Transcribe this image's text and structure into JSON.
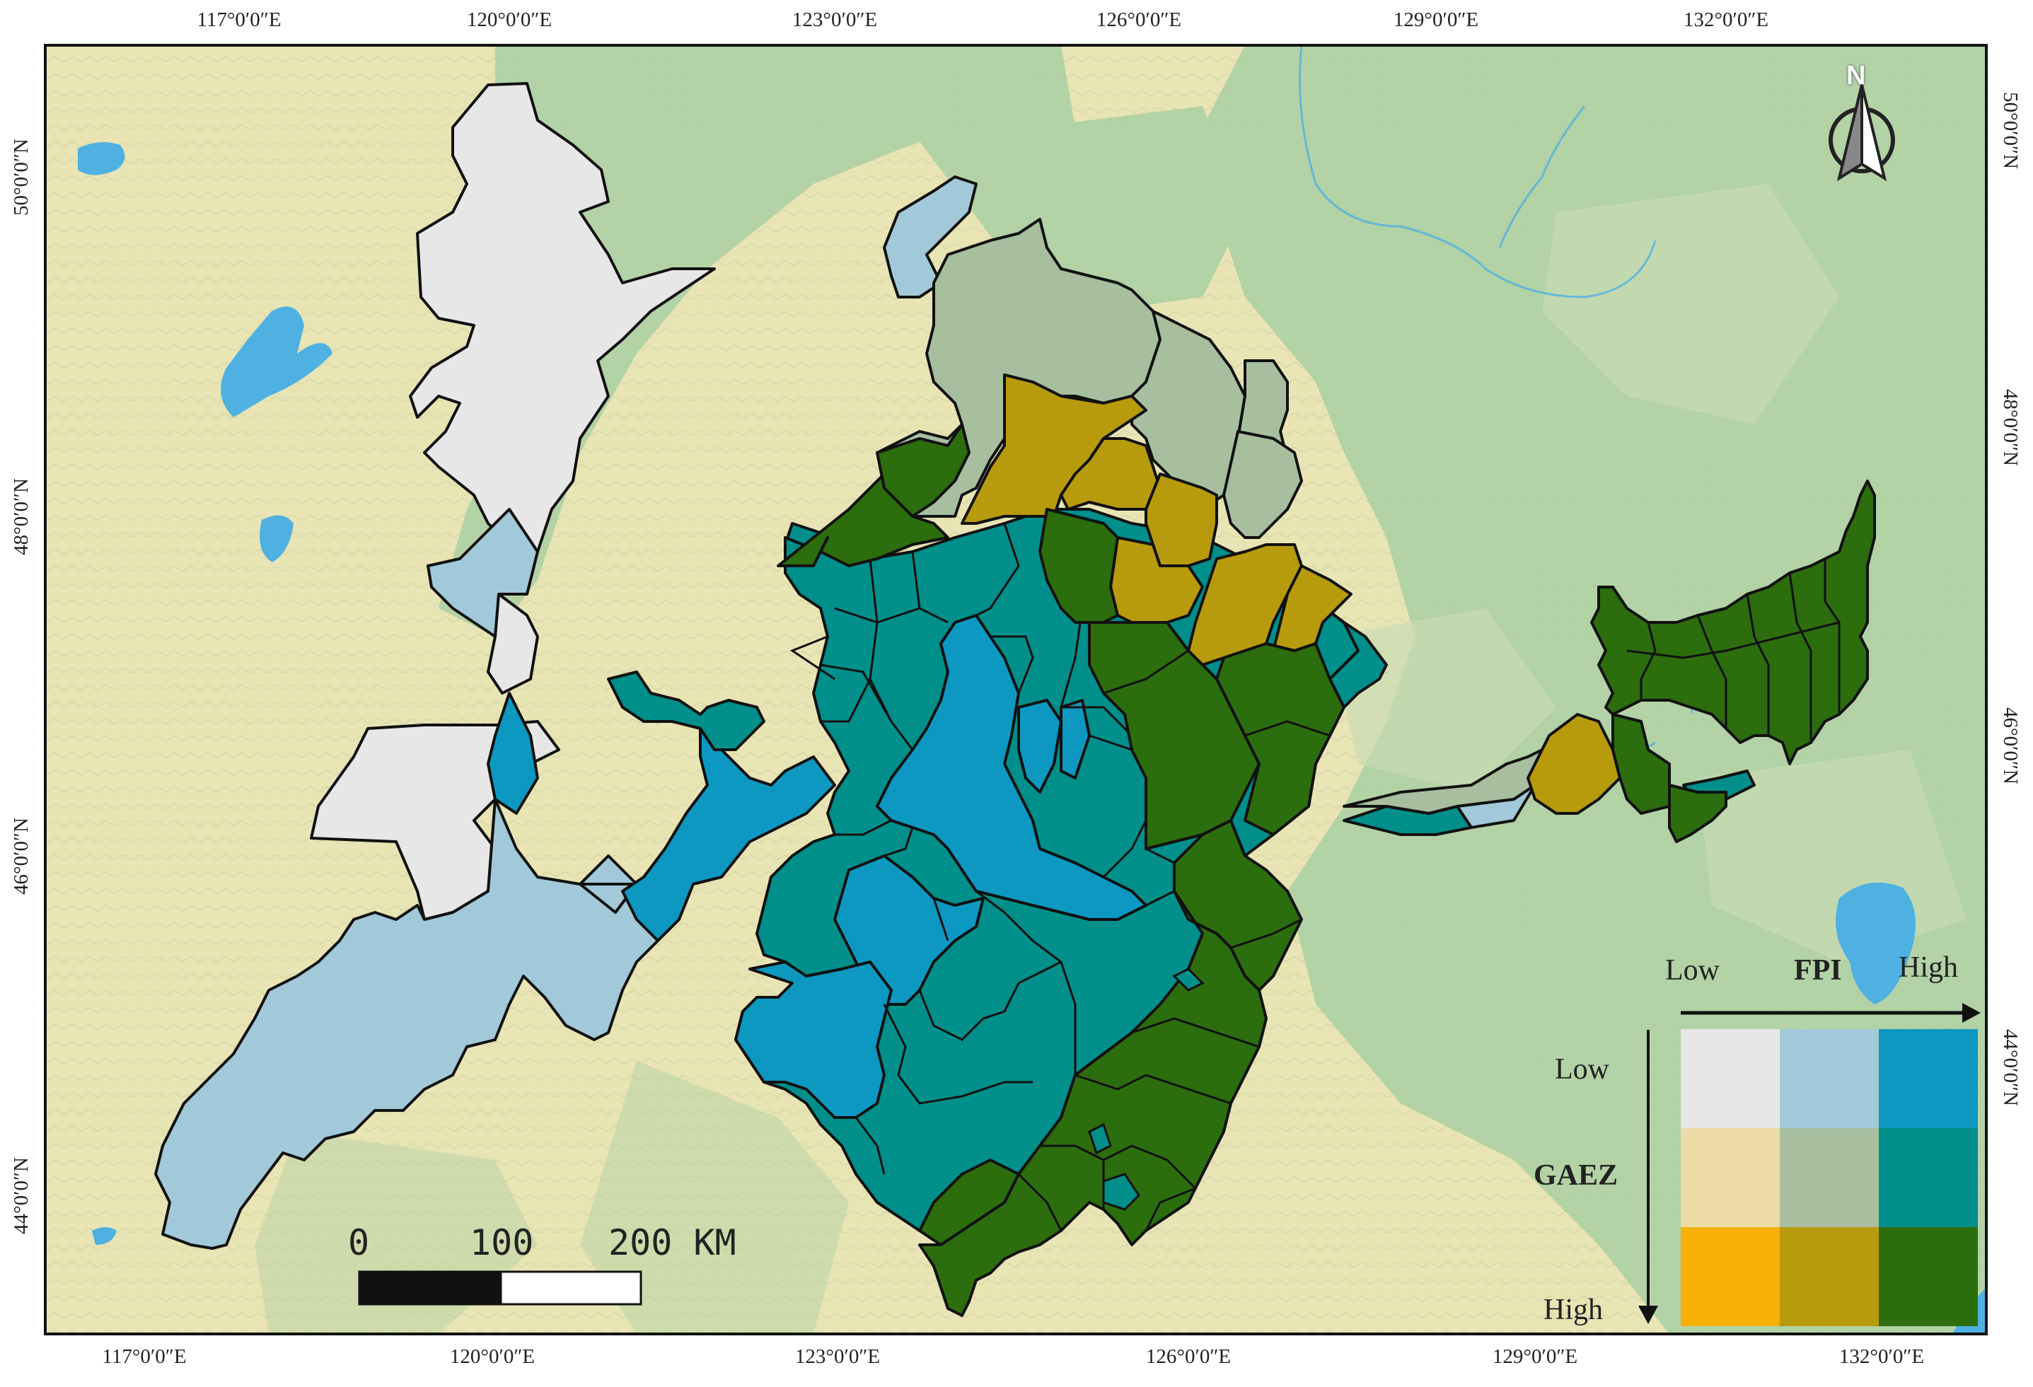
{
  "map": {
    "top_ticks": [
      "117°0′0″E",
      "120°0′0″E",
      "123°0′0″E",
      "126°0′0″E",
      "129°0′0″E",
      "132°0′0″E"
    ],
    "bottom_ticks": [
      "117°0′0″E",
      "120°0′0″E",
      "123°0′0″E",
      "126°0′0″E",
      "129°0′0″E",
      "132°0′0″E"
    ],
    "left_ticks": [
      "50°0′0″N",
      "48°0′0″N",
      "46°0′0″N",
      "44°0′0″N"
    ],
    "right_ticks": [
      "50°0′0″N",
      "48°0′0″N",
      "46°0′0″N",
      "44°0′0″N"
    ],
    "colors": {
      "basemap": "#e9e4b4",
      "relief": "#a9cfa3",
      "water": "#4eb1e2",
      "low_low": "#e7e7e7",
      "low_mid": "#a2c9d9",
      "low_high": "#0d98c1",
      "mid_low": "#ecdca8",
      "mid_mid": "#a7bf9f",
      "mid_high": "#008f8a",
      "high_low": "#f7b008",
      "high_mid": "#b89b0c",
      "high_high": "#2c6d0e"
    }
  },
  "legend": {
    "x_low": "Low",
    "x_title": "FPI",
    "x_high": "High",
    "y_low": "Low",
    "y_title": "GAEZ",
    "y_high": "High"
  },
  "scale_bar": {
    "label_0": "0",
    "label_100": "100",
    "label_200": "200 KM"
  },
  "north_arrow": {
    "label": "N"
  }
}
